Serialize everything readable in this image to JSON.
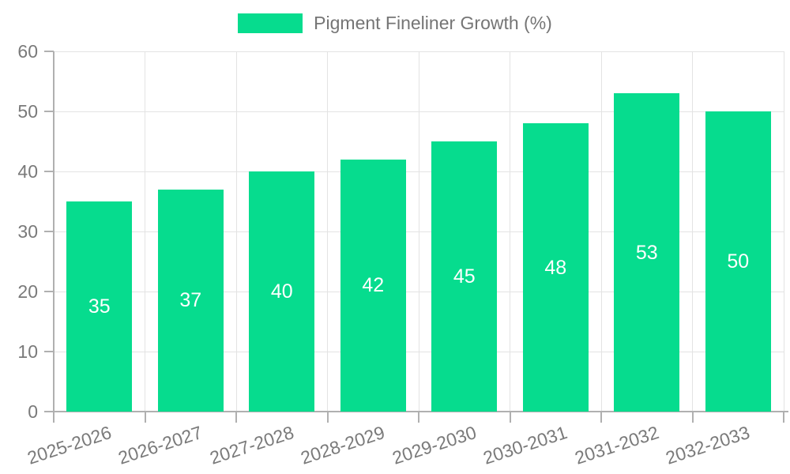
{
  "chart_data": {
    "type": "bar",
    "title": "",
    "xlabel": "",
    "ylabel": "",
    "legend": {
      "label": "Pigment Fineliner Growth (%)",
      "position": "top"
    },
    "categories": [
      "2025-2026",
      "2026-2027",
      "2027-2028",
      "2028-2029",
      "2029-2030",
      "2030-2031",
      "2031-2032",
      "2032-2033"
    ],
    "series": [
      {
        "name": "Pigment Fineliner Growth (%)",
        "color": "#06DC8E",
        "values": [
          35,
          37,
          40,
          42,
          45,
          48,
          53,
          50
        ]
      }
    ],
    "ylim": [
      0,
      60
    ],
    "y_ticks": [
      0,
      10,
      20,
      30,
      40,
      50,
      60
    ],
    "grid": "both",
    "value_labels": "inside-center",
    "x_tick_rotation_deg": -18
  },
  "colors": {
    "background": "#FFFFFF",
    "bar": "#06DC8E",
    "gridline": "#E3E3E3",
    "axis_line": "#B0B0B0",
    "tick_text": "#7A7A7A",
    "legend_text": "#757575",
    "value_text": "#FFFFFF"
  }
}
